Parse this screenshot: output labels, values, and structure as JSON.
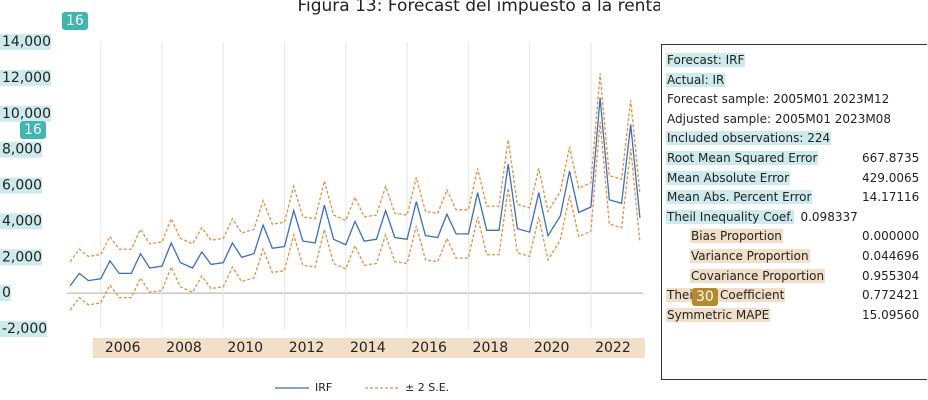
{
  "chart_data": {
    "type": "line",
    "title": "Figura 13: Forecast del impuesto a la renta",
    "x": [
      2005.0,
      2005.3,
      2005.6,
      2006.0,
      2006.3,
      2006.6,
      2007.0,
      2007.3,
      2007.6,
      2008.0,
      2008.3,
      2008.6,
      2009.0,
      2009.3,
      2009.6,
      2010.0,
      2010.3,
      2010.6,
      2011.0,
      2011.3,
      2011.6,
      2012.0,
      2012.3,
      2012.6,
      2013.0,
      2013.3,
      2013.6,
      2014.0,
      2014.3,
      2014.6,
      2015.0,
      2015.3,
      2015.6,
      2016.0,
      2016.3,
      2016.6,
      2017.0,
      2017.3,
      2017.6,
      2018.0,
      2018.3,
      2018.6,
      2019.0,
      2019.3,
      2019.6,
      2020.0,
      2020.3,
      2020.6,
      2021.0,
      2021.3,
      2021.6,
      2022.0,
      2022.3,
      2022.6,
      2023.0,
      2023.3,
      2023.6
    ],
    "series": [
      {
        "name": "IRF",
        "color": "#3a6fc4",
        "values": [
          400,
          1100,
          700,
          800,
          1800,
          1100,
          1100,
          2200,
          1400,
          1500,
          2800,
          1700,
          1400,
          2300,
          1600,
          1700,
          2800,
          2000,
          2200,
          3800,
          2500,
          2600,
          4600,
          2900,
          2800,
          4900,
          3000,
          2700,
          4000,
          2900,
          3000,
          4600,
          3100,
          3000,
          5100,
          3200,
          3100,
          4400,
          3300,
          3300,
          5600,
          3500,
          3500,
          7200,
          3600,
          3400,
          5600,
          3200,
          4300,
          6800,
          4500,
          4800,
          10900,
          5200,
          5000,
          9400,
          4200
        ]
      },
      {
        "name": "± 2 S.E.",
        "color": "#e8903a",
        "upper": [
          1750,
          2450,
          2050,
          2150,
          3150,
          2450,
          2450,
          3550,
          2750,
          2850,
          4150,
          3050,
          2750,
          3650,
          2950,
          3050,
          4150,
          3350,
          3550,
          5150,
          3850,
          3950,
          5950,
          4250,
          4150,
          6250,
          4350,
          4050,
          5350,
          4250,
          4350,
          5950,
          4450,
          4350,
          6450,
          4550,
          4450,
          5750,
          4650,
          4650,
          6950,
          4850,
          4850,
          8550,
          4950,
          4750,
          6950,
          4550,
          5650,
          8150,
          5850,
          6150,
          12250,
          6550,
          6350,
          10750,
          5550
        ],
        "lower": [
          -950,
          -250,
          -650,
          -550,
          450,
          -250,
          -250,
          850,
          50,
          150,
          1450,
          350,
          50,
          950,
          250,
          350,
          1450,
          650,
          850,
          2450,
          1150,
          1250,
          3250,
          1550,
          1450,
          3550,
          1650,
          1350,
          2650,
          1550,
          1650,
          3250,
          1750,
          1650,
          3750,
          1850,
          1750,
          3050,
          1950,
          1950,
          4250,
          2150,
          2150,
          5850,
          2250,
          2050,
          4250,
          1850,
          2950,
          5450,
          3150,
          3450,
          9550,
          3850,
          3650,
          8050,
          2850
        ]
      }
    ],
    "xlim": [
      2004.9,
      2023.7
    ],
    "xticks": [
      2006,
      2008,
      2010,
      2012,
      2014,
      2016,
      2018,
      2020,
      2022
    ],
    "ylim": [
      -2000,
      14000
    ],
    "yticks": [
      {
        "value": -2000,
        "label": "-2,000"
      },
      0,
      {
        "value": 2000,
        "label": "2,000"
      },
      {
        "value": 4000,
        "label": "4,000"
      },
      {
        "value": 6000,
        "label": "6,000"
      },
      {
        "value": 8000,
        "label": "8,000"
      },
      {
        "value": 10000,
        "label": "10,000"
      },
      {
        "value": 12000,
        "label": "12,000"
      },
      {
        "value": 14000,
        "label": "14,000"
      }
    ],
    "grid": true,
    "legend": "bottom"
  },
  "stats": [
    {
      "label": "Forecast: IRF"
    },
    {
      "label": "Actual: IR"
    },
    {
      "label": "Forecast sample: 2005M01 2023M12"
    },
    {
      "label": "Adjusted sample: 2005M01 2023M08"
    },
    {
      "label": "Included observations: 224"
    },
    {
      "label": "Root Mean Squared Error",
      "value": "667.8735"
    },
    {
      "label": "Mean Absolute Error",
      "value": "429.0065"
    },
    {
      "label": "Mean Abs. Percent Error",
      "value": "14.17116"
    },
    {
      "label": "Theil Inequality Coef.",
      "value": "0.098337"
    },
    {
      "label": "Bias Proportion",
      "value": "0.000000"
    },
    {
      "label": "Variance Proportion",
      "value": "0.044696"
    },
    {
      "label": "Covariance Proportion",
      "value": "0.955304"
    },
    {
      "label": "Theil U2 Coefficient",
      "value": "0.772421"
    },
    {
      "label": "Symmetric MAPE",
      "value": "15.09560"
    }
  ],
  "badges": [
    "16",
    "16",
    "30"
  ]
}
